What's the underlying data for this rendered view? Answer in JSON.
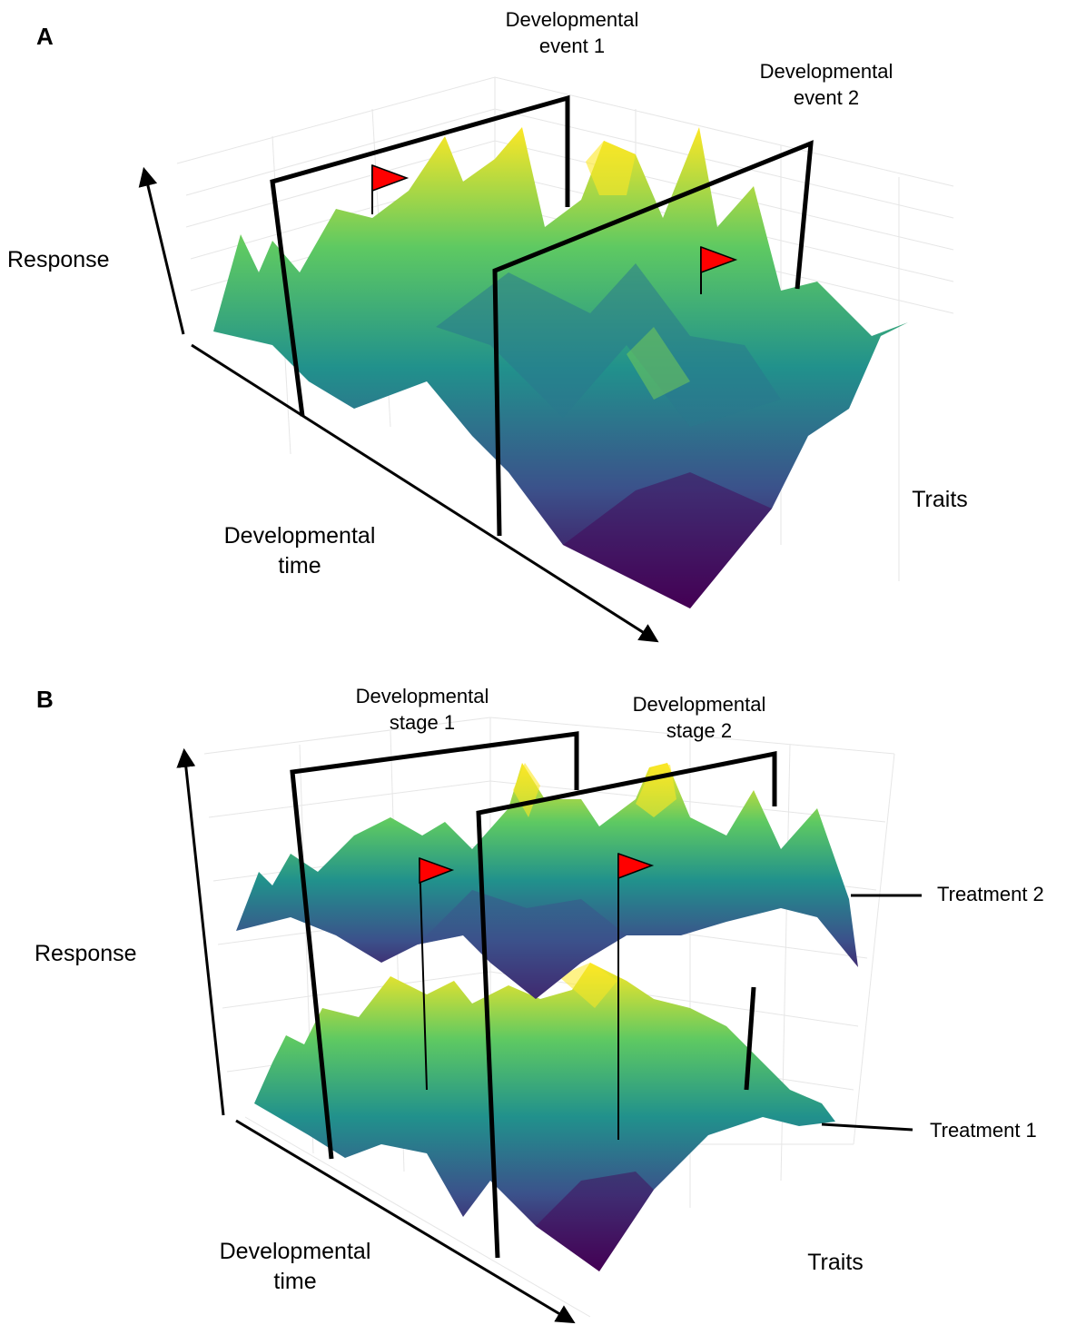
{
  "panels": [
    {
      "letter": "A",
      "axis_response": "Response",
      "axis_time": "Developmental\ntime",
      "axis_traits": "Traits",
      "markers": [
        "Developmental\nevent 1",
        "Developmental\nevent 2"
      ],
      "surface_count": 1
    },
    {
      "letter": "B",
      "axis_response": "Response",
      "axis_time": "Developmental\ntime",
      "axis_traits": "Traits",
      "markers": [
        "Developmental\nstage 1",
        "Developmental\nstage 2"
      ],
      "surface_count": 2,
      "surface_labels": [
        "Treatment 2",
        "Treatment 1"
      ]
    }
  ],
  "colors": {
    "colormap": "viridis",
    "viridis_low": "#440154",
    "viridis_mid": "#21918c",
    "viridis_high": "#fde725",
    "flag": "#ff0000",
    "lines": "#000000",
    "grid": "#e6e6e6"
  }
}
